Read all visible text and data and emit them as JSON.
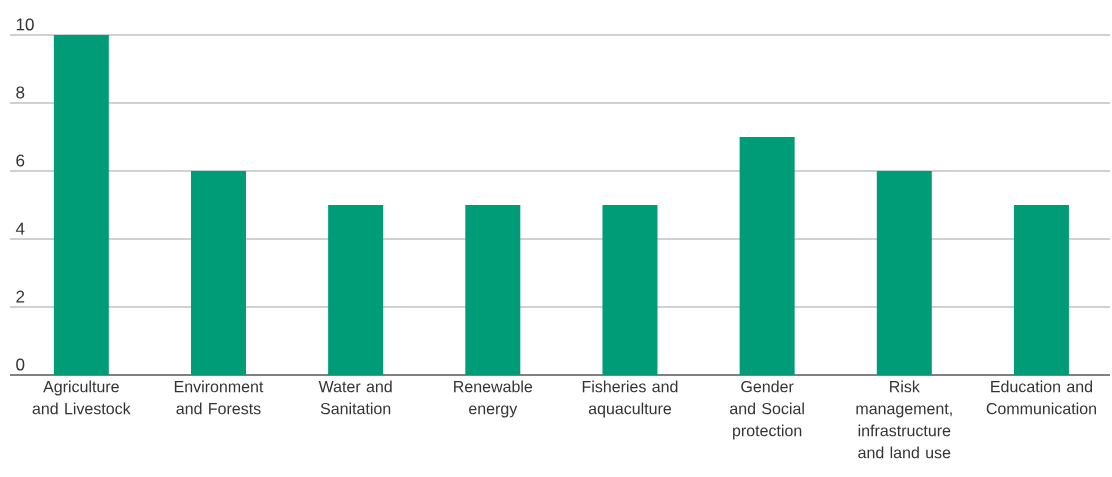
{
  "chart_data": {
    "type": "bar",
    "categories": [
      "Agriculture and Livestock",
      "Environment and Forests",
      "Water and Sanitation",
      "Renewable energy",
      "Fisheries and aquaculture",
      "Gender and Social protection",
      "Risk management, infrastructure and land use",
      "Education and Communication"
    ],
    "values": [
      10,
      6,
      5,
      5,
      5,
      7,
      6,
      5
    ],
    "color": "#009b77",
    "ylim": [
      0,
      10
    ],
    "yticks": [
      0,
      2,
      4,
      6,
      8,
      10
    ],
    "grid": "y"
  }
}
